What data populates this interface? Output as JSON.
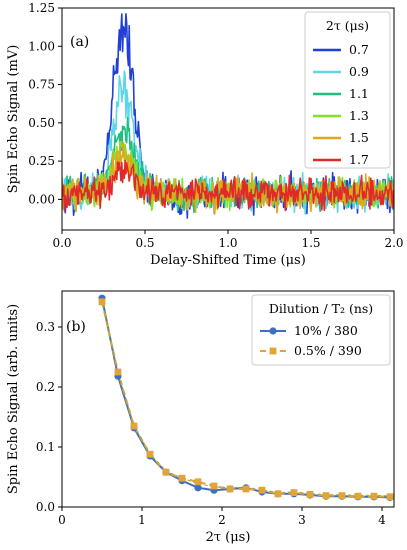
{
  "chart_data": [
    {
      "type": "line",
      "panel_label": "(a)",
      "xlabel": "Delay-Shifted Time (μs)",
      "ylabel": "Spin Echo Signal (mV)",
      "xlim": [
        0,
        2.0
      ],
      "ylim": [
        -0.2,
        1.25
      ],
      "xticks": [
        0.0,
        0.5,
        1.0,
        1.5,
        2.0
      ],
      "xtick_labels": [
        "0.0",
        "0.5",
        "1.0",
        "1.5",
        "2.0"
      ],
      "yticks": [
        0.0,
        0.25,
        0.5,
        0.75,
        1.0,
        1.25
      ],
      "ytick_labels": [
        "0.00",
        "0.25",
        "0.50",
        "0.75",
        "1.00",
        "1.25"
      ],
      "grid": false,
      "legend": {
        "title": "2τ (μs)",
        "placement": "top-right",
        "entries": [
          "0.7",
          "0.9",
          "1.1",
          "1.3",
          "1.5",
          "1.7"
        ]
      },
      "series": [
        {
          "name": "0.7",
          "color": "#1f3fd6",
          "peak": 1.1,
          "noise": 0.07
        },
        {
          "name": "0.9",
          "color": "#5fd6e8",
          "peak": 0.66,
          "noise": 0.065
        },
        {
          "name": "1.1",
          "color": "#1fbf7f",
          "peak": 0.43,
          "noise": 0.06
        },
        {
          "name": "1.3",
          "color": "#86e02a",
          "peak": 0.31,
          "noise": 0.06
        },
        {
          "name": "1.5",
          "color": "#e0a91c",
          "peak": 0.23,
          "noise": 0.065
        },
        {
          "name": "1.7",
          "color": "#e02a2a",
          "peak": 0.17,
          "noise": 0.06
        }
      ]
    },
    {
      "type": "line",
      "panel_label": "(b)",
      "xlabel": "2τ (μs)",
      "ylabel": "Spin Echo Signal (arb. units)",
      "xlim": [
        0,
        4.15
      ],
      "ylim": [
        0,
        0.36
      ],
      "xticks": [
        0,
        1,
        2,
        3,
        4
      ],
      "xtick_labels": [
        "0",
        "1",
        "2",
        "3",
        "4"
      ],
      "yticks": [
        0.0,
        0.1,
        0.2,
        0.3
      ],
      "ytick_labels": [
        "0.0",
        "0.1",
        "0.2",
        "0.3"
      ],
      "grid": false,
      "legend": {
        "title": "Dilution / T₂ (ns)",
        "placement": "top-right",
        "entries": [
          "10% / 380",
          "0.5% / 390"
        ]
      },
      "x": [
        0.5,
        0.7,
        0.9,
        1.1,
        1.3,
        1.5,
        1.7,
        1.9,
        2.1,
        2.3,
        2.5,
        2.7,
        2.9,
        3.1,
        3.3,
        3.5,
        3.7,
        3.9,
        4.1
      ],
      "series": [
        {
          "name": "10% / 380",
          "color": "#3f6fbf",
          "marker": "circle",
          "values": [
            0.348,
            0.218,
            0.132,
            0.085,
            0.058,
            0.044,
            0.032,
            0.028,
            0.03,
            0.032,
            0.025,
            0.022,
            0.022,
            0.02,
            0.018,
            0.018,
            0.017,
            0.017,
            0.016
          ]
        },
        {
          "name": "0.5% / 390",
          "color": "#e0a43a",
          "marker": "square",
          "values": [
            0.342,
            0.225,
            0.135,
            0.088,
            0.058,
            0.048,
            0.042,
            0.035,
            0.03,
            0.03,
            0.028,
            0.022,
            0.024,
            0.021,
            0.019,
            0.019,
            0.018,
            0.018,
            0.017
          ]
        }
      ]
    }
  ]
}
